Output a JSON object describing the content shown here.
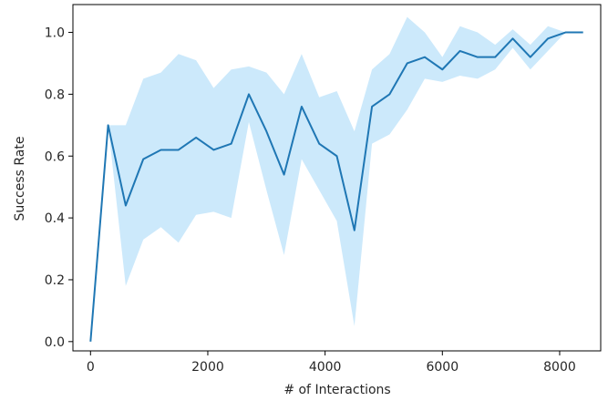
{
  "chart_data": {
    "type": "line",
    "title": "",
    "xlabel": "# of Interactions",
    "ylabel": "Success Rate",
    "xlim": [
      -300,
      8700
    ],
    "ylim": [
      -0.03,
      1.09
    ],
    "grid": false,
    "legend": "none",
    "x_ticks": [
      0,
      2000,
      4000,
      6000,
      8000
    ],
    "x_tick_labels": [
      "0",
      "2000",
      "4000",
      "6000",
      "8000"
    ],
    "y_ticks": [
      0.0,
      0.2,
      0.4,
      0.6,
      0.8,
      1.0
    ],
    "y_tick_labels": [
      "0.0",
      "0.2",
      "0.4",
      "0.6",
      "0.8",
      "1.0"
    ],
    "colors": {
      "line": "#1f77b4",
      "band": "#cce9fb",
      "axes": "#000000",
      "text": "#262626"
    },
    "series": [
      {
        "x": [
          0,
          300,
          600,
          900,
          1200,
          1500,
          1800,
          2100,
          2400,
          2700,
          3000,
          3300,
          3600,
          3900,
          4200,
          4500,
          4800,
          5100,
          5400,
          5700,
          6000,
          6300,
          6600,
          6900,
          7200,
          7500,
          7800,
          8100,
          8400
        ],
        "y": [
          0.0,
          0.7,
          0.44,
          0.59,
          0.62,
          0.62,
          0.66,
          0.62,
          0.64,
          0.8,
          0.68,
          0.54,
          0.76,
          0.64,
          0.6,
          0.36,
          0.76,
          0.8,
          0.9,
          0.92,
          0.88,
          0.94,
          0.92,
          0.92,
          0.98,
          0.92,
          0.98,
          1.0,
          1.0
        ],
        "y_upper": [
          0.0,
          0.7,
          0.7,
          0.85,
          0.87,
          0.93,
          0.91,
          0.82,
          0.88,
          0.89,
          0.87,
          0.8,
          0.93,
          0.79,
          0.81,
          0.68,
          0.88,
          0.93,
          1.05,
          1.0,
          0.92,
          1.02,
          1.0,
          0.96,
          1.01,
          0.96,
          1.02,
          1.0,
          1.0
        ],
        "y_lower": [
          0.0,
          0.7,
          0.18,
          0.33,
          0.37,
          0.32,
          0.41,
          0.42,
          0.4,
          0.71,
          0.49,
          0.28,
          0.59,
          0.49,
          0.39,
          0.05,
          0.64,
          0.67,
          0.75,
          0.85,
          0.84,
          0.86,
          0.85,
          0.88,
          0.95,
          0.88,
          0.94,
          1.0,
          1.0
        ]
      }
    ]
  }
}
